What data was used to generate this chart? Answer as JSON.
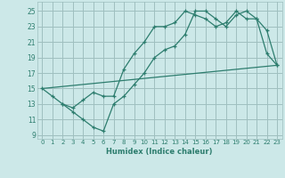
{
  "xlabel": "Humidex (Indice chaleur)",
  "bg_color": "#cce8e8",
  "grid_color": "#9fbfbf",
  "line_color": "#2d7d6e",
  "xlim": [
    -0.5,
    23.5
  ],
  "ylim": [
    8.5,
    26.2
  ],
  "xticks": [
    0,
    1,
    2,
    3,
    4,
    5,
    6,
    7,
    8,
    9,
    10,
    11,
    12,
    13,
    14,
    15,
    16,
    17,
    18,
    19,
    20,
    21,
    22,
    23
  ],
  "yticks": [
    9,
    11,
    13,
    15,
    17,
    19,
    21,
    23,
    25
  ],
  "line1_x": [
    0,
    1,
    2,
    3,
    4,
    5,
    6,
    7,
    8,
    9,
    10,
    11,
    12,
    13,
    14,
    15,
    16,
    17,
    18,
    19,
    20,
    21,
    22,
    23
  ],
  "line1_y": [
    15,
    14,
    13,
    12,
    11,
    10,
    9.5,
    13,
    14,
    15.5,
    17,
    19,
    20,
    20.5,
    22,
    25,
    25,
    24,
    23,
    24.5,
    25,
    24,
    19.5,
    18
  ],
  "line2_x": [
    2,
    3,
    4,
    5,
    6,
    7,
    8,
    9,
    10,
    11,
    12,
    13,
    14,
    15,
    16,
    17,
    18,
    19,
    20,
    21,
    22,
    23
  ],
  "line2_y": [
    13,
    12.5,
    13.5,
    14.5,
    14,
    14,
    17.5,
    19.5,
    21,
    23,
    23,
    23.5,
    25,
    24.5,
    24,
    23,
    23.5,
    25,
    24,
    24,
    22.5,
    18
  ],
  "line3_x": [
    0,
    23
  ],
  "line3_y": [
    15,
    18
  ]
}
